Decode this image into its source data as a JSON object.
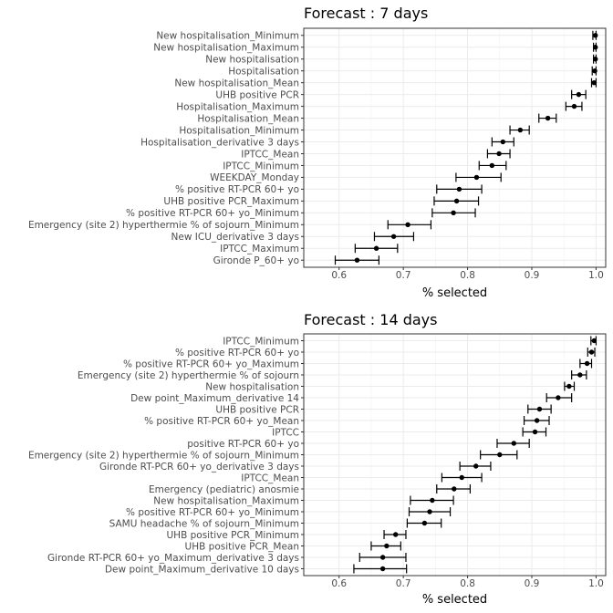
{
  "chart_data": [
    {
      "type": "scatter",
      "title": "Forecast : 7 days",
      "xlabel": "% selected",
      "ylabel": "",
      "xlim": [
        0.545,
        1.015
      ],
      "xticks": [
        "0.6",
        "0.7",
        "0.8",
        "0.9",
        "1.0"
      ],
      "xtick_values": [
        0.6,
        0.7,
        0.8,
        0.9,
        1.0
      ],
      "grid": true,
      "series": [
        {
          "categories": [
            "New hospitalisation_Minimum",
            "New hospitalisation_Maximum",
            "New hospitalisation",
            "Hospitalisation",
            "New hospitalisation_Mean",
            "UHB positive PCR",
            "Hospitalisation_Maximum",
            "Hospitalisation_Mean",
            "Hospitalisation_Minimum",
            "Hospitalisation_derivative 3 days",
            "IPTCC_Mean",
            "IPTCC_Minimum",
            "WEEKDAY_Monday",
            "% positive RT-PCR 60+ yo",
            "UHB positive PCR_Maximum",
            "% positive RT-PCR 60+ yo_Minimum",
            "Emergency (site 2) hyperthermie % of sojourn_Minimum",
            "New ICU_derivative 3 days",
            "IPTCC_Maximum",
            "Gironde P_60+ yo"
          ],
          "values": [
            0.999,
            0.999,
            0.999,
            0.998,
            0.997,
            0.973,
            0.966,
            0.925,
            0.882,
            0.855,
            0.849,
            0.838,
            0.814,
            0.787,
            0.783,
            0.778,
            0.707,
            0.685,
            0.658,
            0.628
          ],
          "lower": [
            0.995,
            0.996,
            0.996,
            0.994,
            0.993,
            0.962,
            0.953,
            0.911,
            0.866,
            0.838,
            0.831,
            0.818,
            0.782,
            0.752,
            0.748,
            0.745,
            0.676,
            0.655,
            0.625,
            0.594
          ],
          "upper": [
            1.0,
            1.0,
            1.0,
            1.0,
            1.0,
            0.984,
            0.978,
            0.938,
            0.896,
            0.872,
            0.866,
            0.86,
            0.852,
            0.822,
            0.817,
            0.812,
            0.743,
            0.716,
            0.691,
            0.662
          ]
        }
      ]
    },
    {
      "type": "scatter",
      "title": "Forecast : 14 days",
      "xlabel": "% selected",
      "ylabel": "",
      "xlim": [
        0.545,
        1.015
      ],
      "xticks": [
        "0.6",
        "0.7",
        "0.8",
        "0.9",
        "1.0"
      ],
      "xtick_values": [
        0.6,
        0.7,
        0.8,
        0.9,
        1.0
      ],
      "grid": true,
      "series": [
        {
          "categories": [
            "IPTCC_Minimum",
            "% positive RT-PCR 60+ yo",
            "% positive RT-PCR 60+ yo_Maximum",
            "Emergency (site 2) hyperthermie % of sojourn",
            "New hospitalisation",
            "Dew point_Maximum_derivative 14",
            "UHB positive PCR",
            "% positive RT-PCR 60+ yo_Mean",
            "IPTCC",
            "positive RT-PCR 60+ yo",
            "Emergency (site 2) hyperthermie % of sojourn_Minimum",
            "Gironde RT-PCR 60+ yo_derivative 3 days",
            "IPTCC_Mean",
            "Emergency (pediatric) anosmie",
            "New hospitalisation_Maximum",
            "% positive RT-PCR 60+ yo_Minimum",
            "SAMU headache % of sojourn_Minimum",
            "UHB positive PCR_Minimum",
            "UHB positive PCR_Mean",
            "Gironde RT-PCR 60+ yo_Maximum_derivative 3 days",
            "Dew point_Maximum_derivative 10 days"
          ],
          "values": [
            0.997,
            0.993,
            0.986,
            0.975,
            0.958,
            0.941,
            0.912,
            0.908,
            0.905,
            0.872,
            0.85,
            0.813,
            0.791,
            0.779,
            0.745,
            0.741,
            0.733,
            0.688,
            0.674,
            0.668,
            0.668
          ],
          "lower": [
            0.992,
            0.987,
            0.975,
            0.962,
            0.951,
            0.923,
            0.894,
            0.888,
            0.886,
            0.846,
            0.82,
            0.788,
            0.76,
            0.752,
            0.711,
            0.709,
            0.706,
            0.67,
            0.65,
            0.632,
            0.623
          ],
          "upper": [
            1.0,
            0.998,
            0.993,
            0.985,
            0.966,
            0.962,
            0.93,
            0.927,
            0.922,
            0.896,
            0.877,
            0.836,
            0.822,
            0.804,
            0.778,
            0.773,
            0.759,
            0.704,
            0.696,
            0.704,
            0.705
          ]
        }
      ]
    }
  ]
}
